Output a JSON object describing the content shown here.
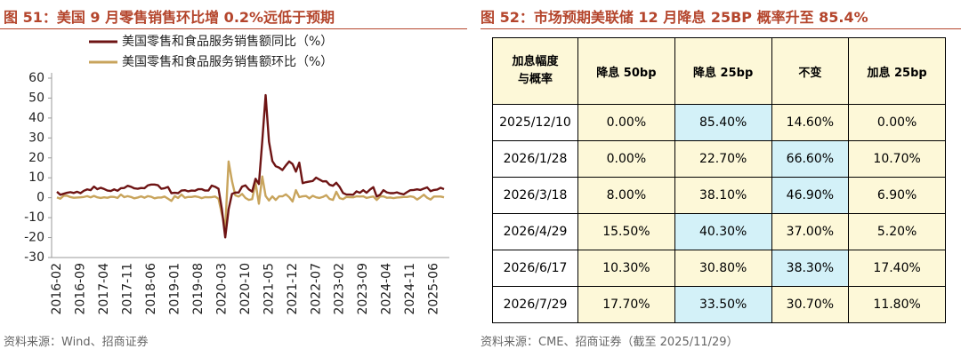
{
  "chart_data": {
    "type": "line",
    "title": "图 51：美国 9 月零售销售环比增 0.2%远低于预期",
    "source": "资料来源：Wind、招商证券",
    "categories": [
      "2016-02",
      null,
      null,
      null,
      null,
      null,
      null,
      "2016-09",
      null,
      null,
      null,
      null,
      null,
      null,
      "2017-04",
      null,
      null,
      null,
      null,
      null,
      null,
      "2017-11",
      null,
      null,
      null,
      null,
      null,
      null,
      "2018-06",
      null,
      null,
      null,
      null,
      null,
      null,
      "2019-01",
      null,
      null,
      null,
      null,
      null,
      null,
      "2019-08",
      null,
      null,
      null,
      null,
      null,
      null,
      "2020-03",
      null,
      null,
      null,
      null,
      null,
      null,
      "2020-10",
      null,
      null,
      null,
      null,
      null,
      null,
      "2021-05",
      null,
      null,
      null,
      null,
      null,
      null,
      "2021-12",
      null,
      null,
      null,
      null,
      null,
      null,
      "2022-07",
      null,
      null,
      null,
      null,
      null,
      null,
      "2023-02",
      null,
      null,
      null,
      null,
      null,
      null,
      "2023-09",
      null,
      null,
      null,
      null,
      null,
      null,
      "2024-04",
      null,
      null,
      null,
      null,
      null,
      null,
      "2024-11",
      null,
      null,
      null,
      null,
      null,
      null,
      "2025-06",
      null,
      null,
      null
    ],
    "series": [
      {
        "name": "美国零售和食品服务销售额同比（%）",
        "color": "#6e1414",
        "values": [
          3,
          1.5,
          2,
          2.5,
          2.8,
          2.4,
          3,
          2.3,
          3.5,
          4.2,
          3.8,
          5.6,
          4.3,
          5,
          4.4,
          3.6,
          3.4,
          4.2,
          3.5,
          4.8,
          4.9,
          6,
          5.5,
          4.7,
          4.5,
          4.9,
          4.8,
          6.2,
          6.6,
          6.6,
          6.3,
          4.5,
          4.8,
          5.4,
          2.3,
          2.5,
          2.3,
          3.6,
          3.8,
          3.2,
          3.6,
          3.5,
          4.3,
          4.3,
          3.6,
          3.6,
          6.1,
          5.5,
          4.5,
          -5.7,
          -19.9,
          -5.8,
          1.9,
          2.6,
          2.6,
          5.6,
          6.2,
          4.2,
          3.1,
          9.5,
          6.9,
          28.4,
          51.5,
          28.1,
          18.4,
          15.8,
          15.1,
          13.9,
          16.2,
          18.2,
          16.9,
          13.1,
          17.6,
          7.3,
          7.8,
          8.1,
          8.4,
          10.1,
          9.1,
          8.2,
          8.3,
          6.5,
          6.0,
          7.5,
          5.4,
          2.4,
          1.6,
          1.6,
          1.5,
          3.2,
          2.5,
          3.8,
          2.5,
          4.1,
          5.3,
          0.6,
          1.5,
          3.8,
          2.7,
          2.3,
          2.3,
          2.7,
          2.1,
          1.7,
          2.8,
          3.8,
          3.9,
          4.2,
          3.9,
          4.6,
          5.2,
          3.3,
          3.9,
          4.1,
          5.0,
          4.3
        ]
      },
      {
        "name": "美国零售和食品服务销售额环比（%）",
        "color": "#c8a45c",
        "values": [
          0.2,
          -0.5,
          1,
          1,
          0.3,
          0,
          0.1,
          0.2,
          0.4,
          0.8,
          0.2,
          0.9,
          0.2,
          -0.1,
          0.2,
          0,
          0.5,
          0.4,
          -0.1,
          1.6,
          0.3,
          0.8,
          0.4,
          -0.3,
          0.1,
          0.7,
          0,
          0.8,
          0.5,
          -0.3,
          0.1,
          0.1,
          0.6,
          -0.5,
          -1.6,
          0.8,
          -0.1,
          1.6,
          0,
          0.4,
          0.4,
          0.7,
          0.4,
          -0.2,
          0.3,
          0.2,
          0.3,
          0.6,
          -0.5,
          -8.2,
          -14.7,
          18.2,
          8.4,
          1.2,
          0.6,
          1.9,
          -0.1,
          -1.1,
          -0.7,
          7.6,
          -3,
          10.7,
          0.9,
          -1.4,
          0.7,
          -1.1,
          0.7,
          0.7,
          1.7,
          0.3,
          -1.9,
          3.8,
          0.3,
          0.7,
          0.9,
          -0.3,
          1,
          0.2,
          -0.1,
          0.4,
          1.3,
          -0.6,
          -1.1,
          3.0,
          -0.2,
          -0.7,
          0.4,
          0.3,
          0.2,
          0.7,
          0.6,
          0.7,
          -0.1,
          0.3,
          0.6,
          -1.1,
          0.6,
          0.7,
          0.0,
          0.1,
          -0.2,
          0.1,
          0.2,
          0.4,
          0.4,
          0.7,
          0.4,
          -0.9,
          0.2,
          1.5,
          0,
          -0.9,
          0.6,
          0.6,
          0.6,
          0.2
        ]
      }
    ],
    "ylim": [
      -30,
      60
    ],
    "yticks": [
      -30,
      -20,
      -10,
      0,
      10,
      20,
      30,
      40,
      50,
      60
    ]
  },
  "table_figure": {
    "title": "图 52：市场预期美联储 12 月降息 25BP 概率升至 85.4%",
    "source": "资料来源：CME、招商证券（截至 2025/11/29）",
    "header": [
      "加息幅度与概率",
      "降息 50bp",
      "降息 25bp",
      "不变",
      "加息 25bp"
    ],
    "rows": [
      [
        "2025/12/10",
        "0.00%",
        "85.40%",
        "14.60%",
        "0.00%"
      ],
      [
        "2026/1/28",
        "0.00%",
        "22.70%",
        "66.60%",
        "10.70%"
      ],
      [
        "2026/3/18",
        "8.00%",
        "38.10%",
        "46.90%",
        "6.90%"
      ],
      [
        "2026/4/29",
        "15.50%",
        "40.30%",
        "37.00%",
        "5.20%"
      ],
      [
        "2026/6/17",
        "10.30%",
        "30.80%",
        "38.30%",
        "17.40%"
      ],
      [
        "2026/7/29",
        "17.70%",
        "33.50%",
        "30.70%",
        "11.80%"
      ]
    ]
  }
}
